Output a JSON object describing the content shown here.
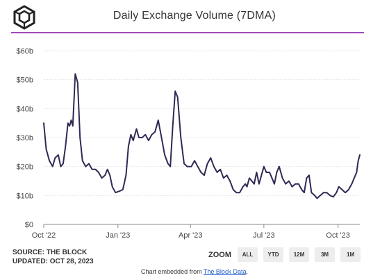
{
  "header": {
    "logo_icon": "the-block-cube-icon",
    "title": "Daily Exchange Volume (7DMA)",
    "accent_color": "#a04ab8"
  },
  "chart_data": {
    "type": "line",
    "title": "Daily Exchange Volume (7DMA)",
    "xlabel": "",
    "ylabel": "",
    "ylim": [
      0,
      60
    ],
    "y_ticks": [
      0,
      10,
      20,
      30,
      40,
      50,
      60
    ],
    "y_tick_labels": [
      "$0",
      "$10b",
      "$20b",
      "$30b",
      "$40b",
      "$50b",
      "$60b"
    ],
    "x_tick_labels": [
      {
        "label": "Oct '22",
        "date": "2022-10-01"
      },
      {
        "label": "Jan '23",
        "date": "2023-01-01"
      },
      {
        "label": "Apr '23",
        "date": "2023-04-01"
      },
      {
        "label": "Jul '23",
        "date": "2023-07-01"
      },
      {
        "label": "Oct '23",
        "date": "2023-10-01"
      }
    ],
    "x_range": [
      "2022-10-01",
      "2023-10-28"
    ],
    "grid": true,
    "line_color": "#2e2a55",
    "series": [
      {
        "points": [
          [
            "2022-10-01",
            35
          ],
          [
            "2022-10-04",
            26
          ],
          [
            "2022-10-08",
            22
          ],
          [
            "2022-10-12",
            20
          ],
          [
            "2022-10-15",
            23
          ],
          [
            "2022-10-19",
            24
          ],
          [
            "2022-10-22",
            20
          ],
          [
            "2022-10-25",
            21
          ],
          [
            "2022-10-28",
            27
          ],
          [
            "2022-10-31",
            35
          ],
          [
            "2022-11-02",
            34
          ],
          [
            "2022-11-04",
            36
          ],
          [
            "2022-11-06",
            34
          ],
          [
            "2022-11-09",
            52
          ],
          [
            "2022-11-12",
            49
          ],
          [
            "2022-11-15",
            30
          ],
          [
            "2022-11-18",
            22
          ],
          [
            "2022-11-22",
            20
          ],
          [
            "2022-11-26",
            21
          ],
          [
            "2022-11-30",
            19
          ],
          [
            "2022-12-04",
            19
          ],
          [
            "2022-12-08",
            18
          ],
          [
            "2022-12-12",
            16
          ],
          [
            "2022-12-16",
            17
          ],
          [
            "2022-12-19",
            19
          ],
          [
            "2022-12-22",
            17
          ],
          [
            "2022-12-25",
            13
          ],
          [
            "2022-12-29",
            11
          ],
          [
            "2023-01-03",
            11.5
          ],
          [
            "2023-01-07",
            12
          ],
          [
            "2023-01-11",
            17
          ],
          [
            "2023-01-14",
            27
          ],
          [
            "2023-01-17",
            31
          ],
          [
            "2023-01-20",
            29
          ],
          [
            "2023-01-24",
            33
          ],
          [
            "2023-01-27",
            30
          ],
          [
            "2023-01-31",
            30
          ],
          [
            "2023-02-04",
            31
          ],
          [
            "2023-02-08",
            29
          ],
          [
            "2023-02-12",
            31
          ],
          [
            "2023-02-16",
            32
          ],
          [
            "2023-02-20",
            36
          ],
          [
            "2023-02-24",
            30
          ],
          [
            "2023-02-28",
            24
          ],
          [
            "2023-03-04",
            21
          ],
          [
            "2023-03-07",
            20
          ],
          [
            "2023-03-10",
            34
          ],
          [
            "2023-03-13",
            46
          ],
          [
            "2023-03-16",
            44
          ],
          [
            "2023-03-20",
            30
          ],
          [
            "2023-03-24",
            21
          ],
          [
            "2023-03-28",
            20
          ],
          [
            "2023-04-02",
            20
          ],
          [
            "2023-04-06",
            22
          ],
          [
            "2023-04-10",
            20
          ],
          [
            "2023-04-14",
            18
          ],
          [
            "2023-04-18",
            17
          ],
          [
            "2023-04-22",
            21
          ],
          [
            "2023-04-26",
            23
          ],
          [
            "2023-04-30",
            20
          ],
          [
            "2023-05-04",
            18
          ],
          [
            "2023-05-08",
            19
          ],
          [
            "2023-05-12",
            16
          ],
          [
            "2023-05-16",
            17
          ],
          [
            "2023-05-20",
            15
          ],
          [
            "2023-05-24",
            12
          ],
          [
            "2023-05-28",
            11
          ],
          [
            "2023-06-01",
            11
          ],
          [
            "2023-06-05",
            13
          ],
          [
            "2023-06-08",
            14
          ],
          [
            "2023-06-10",
            13
          ],
          [
            "2023-06-13",
            16
          ],
          [
            "2023-06-16",
            15
          ],
          [
            "2023-06-19",
            14
          ],
          [
            "2023-06-22",
            18
          ],
          [
            "2023-06-25",
            14
          ],
          [
            "2023-06-28",
            17
          ],
          [
            "2023-07-01",
            20
          ],
          [
            "2023-07-04",
            18
          ],
          [
            "2023-07-08",
            18
          ],
          [
            "2023-07-11",
            16
          ],
          [
            "2023-07-14",
            14
          ],
          [
            "2023-07-17",
            18
          ],
          [
            "2023-07-20",
            20
          ],
          [
            "2023-07-24",
            16
          ],
          [
            "2023-07-28",
            14
          ],
          [
            "2023-08-01",
            15
          ],
          [
            "2023-08-05",
            13
          ],
          [
            "2023-08-09",
            14
          ],
          [
            "2023-08-13",
            14
          ],
          [
            "2023-08-17",
            12
          ],
          [
            "2023-08-20",
            11
          ],
          [
            "2023-08-23",
            16
          ],
          [
            "2023-08-26",
            17
          ],
          [
            "2023-08-29",
            11
          ],
          [
            "2023-09-02",
            10
          ],
          [
            "2023-09-05",
            9
          ],
          [
            "2023-09-09",
            10
          ],
          [
            "2023-09-13",
            11
          ],
          [
            "2023-09-17",
            11
          ],
          [
            "2023-09-21",
            10
          ],
          [
            "2023-09-25",
            9.5
          ],
          [
            "2023-09-29",
            11
          ],
          [
            "2023-10-02",
            13
          ],
          [
            "2023-10-06",
            12
          ],
          [
            "2023-10-10",
            11
          ],
          [
            "2023-10-14",
            12
          ],
          [
            "2023-10-18",
            14
          ],
          [
            "2023-10-21",
            16
          ],
          [
            "2023-10-24",
            18
          ],
          [
            "2023-10-26",
            22
          ],
          [
            "2023-10-28",
            24
          ]
        ]
      }
    ]
  },
  "footer": {
    "source": "SOURCE: THE BLOCK",
    "updated": "UPDATED: OCT 28, 2023",
    "zoom_label": "ZOOM",
    "zoom_buttons": [
      "ALL",
      "YTD",
      "12M",
      "3M",
      "1M"
    ],
    "embed_text": "Chart embedded from ",
    "embed_link": "The Block Data",
    "embed_suffix": "."
  }
}
